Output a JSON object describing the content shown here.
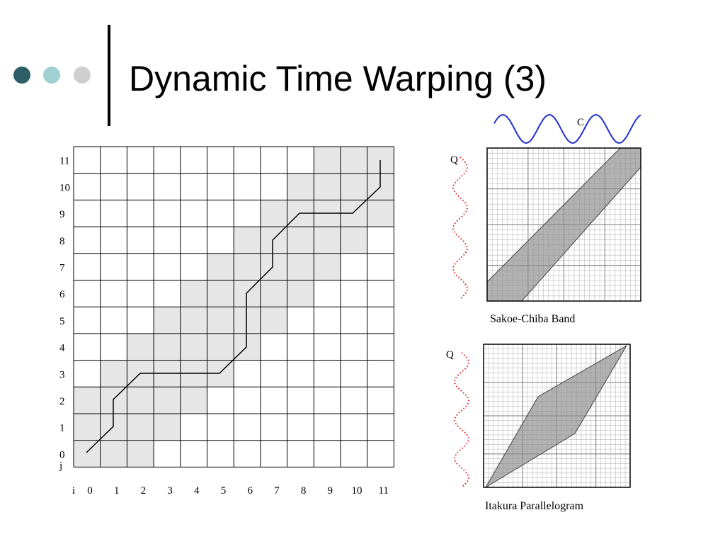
{
  "title": "Dynamic Time Warping (3)",
  "grid": {
    "i_axis_name": "i",
    "j_axis_name": "j",
    "i_labels": [
      0,
      1,
      2,
      3,
      4,
      5,
      6,
      7,
      8,
      9,
      10,
      11
    ],
    "j_labels": [
      0,
      1,
      2,
      3,
      4,
      5,
      6,
      7,
      8,
      9,
      10,
      11
    ]
  },
  "sakoe_chiba": {
    "series_c": "C",
    "series_q": "Q",
    "caption": "Sakoe-Chiba Band"
  },
  "itakura": {
    "series_q": "Q",
    "caption": "Itakura Parallelogram"
  }
}
